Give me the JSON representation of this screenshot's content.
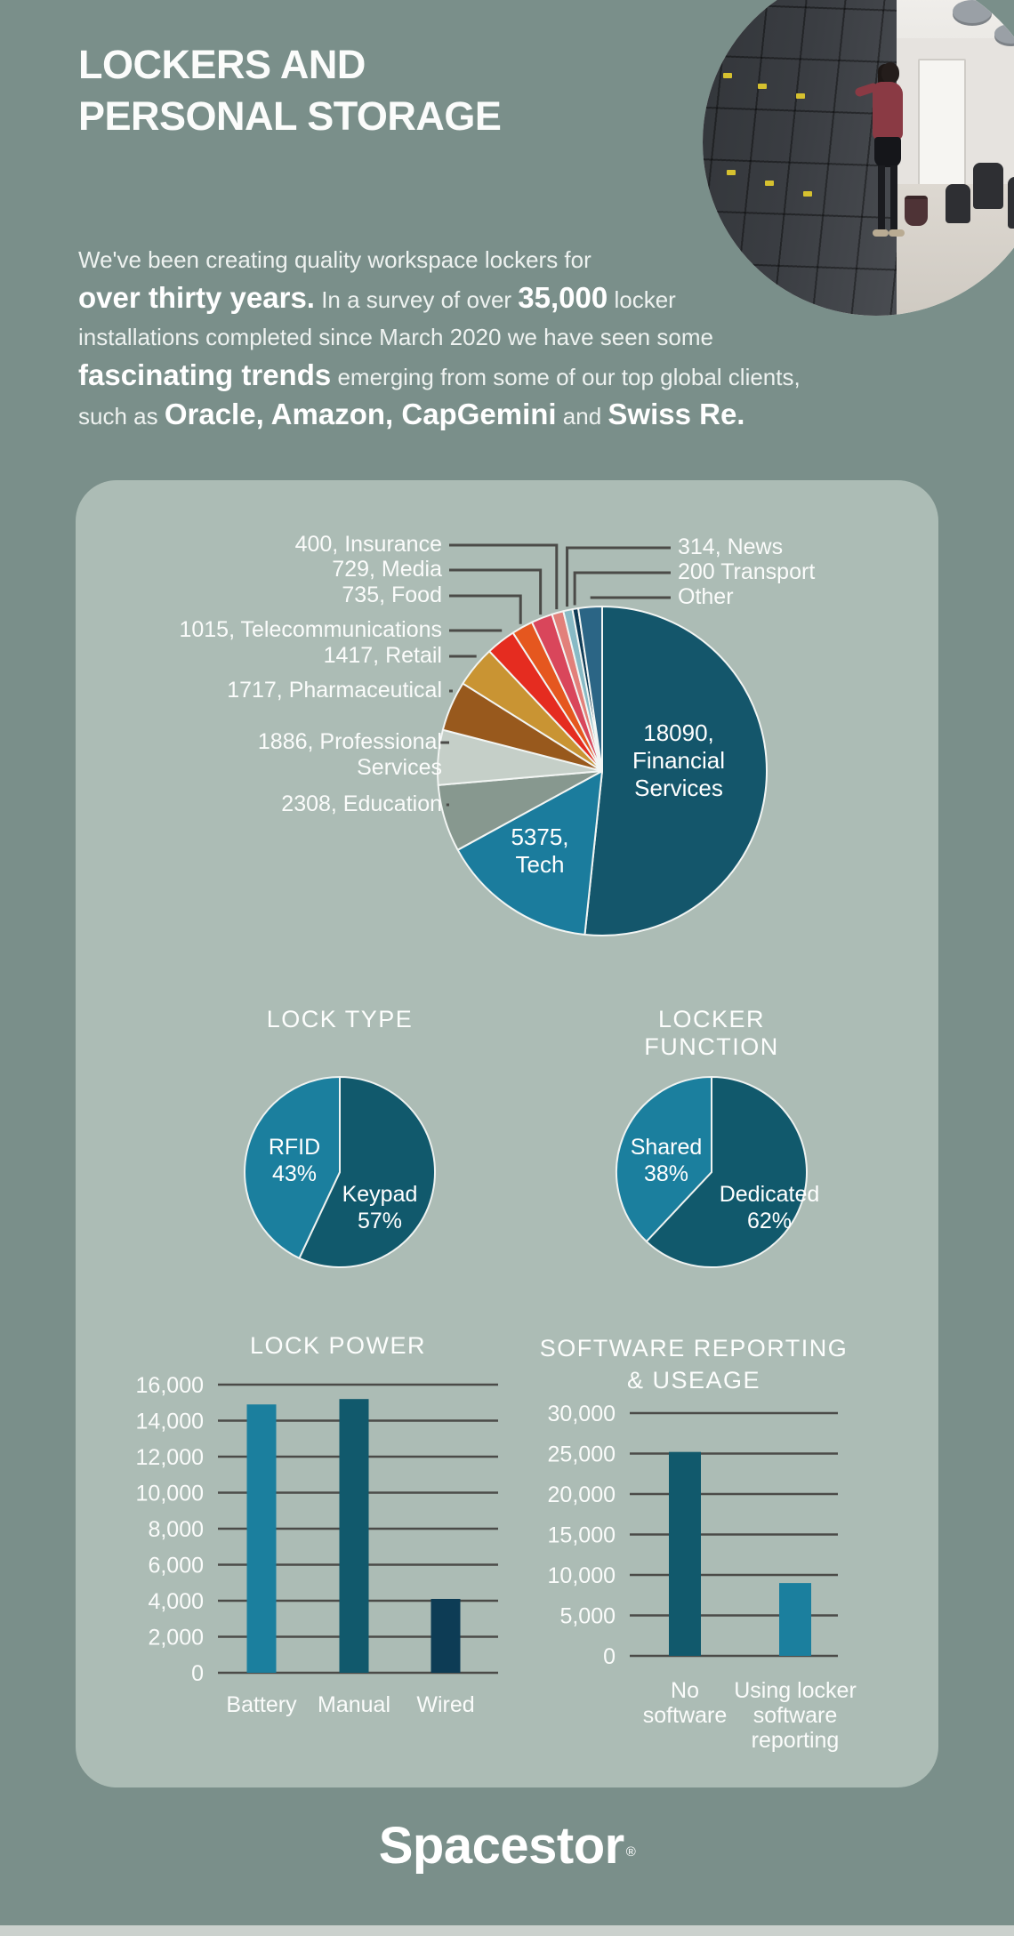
{
  "header": {
    "title_line1": "LOCKERS AND",
    "title_line2": "PERSONAL STORAGE",
    "intro_lines": [
      [
        {
          "t": "We've been creating quality workspace lockers for",
          "b": false
        }
      ],
      [
        {
          "t": "over thirty years.",
          "b": true
        },
        {
          "t": " In a survey of over ",
          "b": false
        },
        {
          "t": "35,000",
          "b": true
        },
        {
          "t": " locker",
          "b": false
        }
      ],
      [
        {
          "t": "installations completed since March 2020 we have seen some",
          "b": false
        }
      ],
      [
        {
          "t": "fascinating trends",
          "b": true
        },
        {
          "t": " emerging from some of our top global clients,",
          "b": false
        }
      ],
      [
        {
          "t": "such as ",
          "b": false
        },
        {
          "t": "Oracle, Amazon, CapGemini",
          "b": true
        },
        {
          "t": " and ",
          "b": false
        },
        {
          "t": "Swiss Re.",
          "b": true
        }
      ]
    ],
    "photo_alt": "office-with-dark-lockers"
  },
  "colors": {
    "background": "#7a8f8a",
    "panel": "#acbcb5",
    "text_light": "#f4f6f4",
    "leader_line": "#4b4b48",
    "gridline": "#4b4b48",
    "footer_strip": "#cbd1cd"
  },
  "chart_data": [
    {
      "id": "industries",
      "type": "pie",
      "sectors": [
        {
          "id": "financial-services",
          "name": "Financial Services",
          "value": 18090,
          "color": "#14566b",
          "label_lines": [
            "18090,",
            "Financial",
            "Services"
          ]
        },
        {
          "id": "tech",
          "name": "Tech",
          "value": 5375,
          "color": "#1b7c9d",
          "label_lines": [
            "5375,",
            "Tech"
          ]
        },
        {
          "id": "education",
          "name": "Education",
          "value": 2308,
          "color": "#87988f",
          "label_lines": [
            "2308, Education"
          ]
        },
        {
          "id": "professional-services",
          "name": "Professional Services",
          "value": 1886,
          "color": "#c5cfc8",
          "label_lines": [
            "1886, Professional",
            "Services"
          ]
        },
        {
          "id": "pharmaceutical",
          "name": "Pharmaceutical",
          "value": 1717,
          "color": "#98591d",
          "label_lines": [
            "1717, Pharmaceutical"
          ]
        },
        {
          "id": "retail",
          "name": "Retail",
          "value": 1417,
          "color": "#c99433",
          "label_lines": [
            "1417, Retail"
          ]
        },
        {
          "id": "telecommunications",
          "name": "Telecommunications",
          "value": 1015,
          "color": "#e52c20",
          "label_lines": [
            "1015, Telecommunications"
          ]
        },
        {
          "id": "food",
          "name": "Food",
          "value": 735,
          "color": "#e5571f",
          "label_lines": [
            "735, Food"
          ]
        },
        {
          "id": "media",
          "name": "Media",
          "value": 729,
          "color": "#d9465b",
          "label_lines": [
            "729, Media"
          ]
        },
        {
          "id": "insurance",
          "name": "Insurance",
          "value": 400,
          "color": "#e2807a",
          "label_lines": [
            "400, Insurance"
          ]
        },
        {
          "id": "news",
          "name": "News",
          "value": 314,
          "color": "#88bac5",
          "label_lines": [
            "314, News"
          ]
        },
        {
          "id": "transport",
          "name": "Transport",
          "value": 200,
          "color": "#0e3b56",
          "label_lines": [
            "200 Transport"
          ]
        },
        {
          "id": "other",
          "name": "Other",
          "value": 814,
          "estimated": true,
          "color": "#2b6585",
          "label_lines": [
            "Other"
          ]
        }
      ]
    },
    {
      "id": "lock-type",
      "type": "pie",
      "title": "LOCK TYPE",
      "sectors": [
        {
          "id": "keypad",
          "name": "Keypad",
          "pct": 57,
          "color": "#11596c",
          "label_lines": [
            "Keypad",
            "57%"
          ]
        },
        {
          "id": "rfid",
          "name": "RFID",
          "pct": 43,
          "color": "#1b7f9e",
          "label_lines": [
            "RFID",
            "43%"
          ]
        }
      ]
    },
    {
      "id": "locker-function",
      "type": "pie",
      "title": "LOCKER FUNCTION",
      "sectors": [
        {
          "id": "dedicated",
          "name": "Dedicated",
          "pct": 62,
          "color": "#11596c",
          "label_lines": [
            "Dedicated",
            "62%"
          ]
        },
        {
          "id": "shared",
          "name": "Shared",
          "pct": 38,
          "color": "#1b7f9e",
          "label_lines": [
            "Shared",
            "38%"
          ]
        }
      ]
    },
    {
      "id": "lock-power",
      "type": "bar",
      "title": "LOCK POWER",
      "categories": [
        "Battery",
        "Manual",
        "Wired"
      ],
      "category_label_lines": [
        [
          "Battery"
        ],
        [
          "Manual"
        ],
        [
          "Wired"
        ]
      ],
      "values": [
        14900,
        15200,
        4100
      ],
      "bar_colors": [
        "#1b7f9e",
        "#11596c",
        "#0d3c55"
      ],
      "ylim": [
        0,
        16000
      ],
      "ytick_values": [
        0,
        2000,
        4000,
        6000,
        8000,
        10000,
        12000,
        14000,
        16000
      ],
      "ytick_labels": [
        "0",
        "2,000",
        "4,000",
        "6,000",
        "8,000",
        "10,000",
        "12,000",
        "14,000",
        "16,000"
      ],
      "grid": true,
      "legend": "none"
    },
    {
      "id": "software-reporting",
      "type": "bar",
      "title_line1": "SOFTWARE REPORTING",
      "title_line2": "& USEAGE",
      "categories": [
        "No software",
        "Using locker software reporting"
      ],
      "category_label_lines": [
        [
          "No",
          "software"
        ],
        [
          "Using locker",
          "software",
          "reporting"
        ]
      ],
      "values": [
        25200,
        9000
      ],
      "bar_colors": [
        "#11596c",
        "#1b7f9e"
      ],
      "ylim": [
        0,
        30000
      ],
      "ytick_values": [
        0,
        5000,
        10000,
        15000,
        20000,
        25000,
        30000
      ],
      "ytick_labels": [
        "0",
        "5,000",
        "10,000",
        "15,000",
        "20,000",
        "25,000",
        "30,000"
      ],
      "grid": true,
      "legend": "none"
    }
  ],
  "footer": {
    "logo_text": "Spacestor",
    "registered_mark": "®"
  }
}
